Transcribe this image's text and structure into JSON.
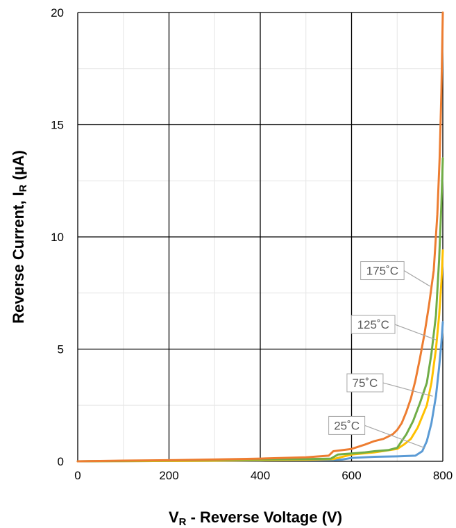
{
  "chart_data": {
    "type": "line",
    "title": "",
    "xlabel": {
      "main": "V",
      "sub": "R",
      "rest": " - Reverse Voltage (V)"
    },
    "ylabel": {
      "main": "Reverse Current, I",
      "sub": "R",
      "rest": " (µA)"
    },
    "xlim": [
      0,
      800
    ],
    "ylim": [
      0,
      20
    ],
    "x_ticks": [
      0,
      200,
      400,
      600,
      800
    ],
    "y_ticks": [
      0,
      5,
      10,
      15,
      20
    ],
    "x_minor_step": 100,
    "y_minor_step": 2.5,
    "grid": true,
    "legend": "none",
    "series": [
      {
        "name": "25˚C",
        "color": "#5B9BD5",
        "points": [
          [
            0,
            0
          ],
          [
            100,
            0.01
          ],
          [
            200,
            0.02
          ],
          [
            300,
            0.03
          ],
          [
            400,
            0.04
          ],
          [
            500,
            0.05
          ],
          [
            560,
            0.06
          ],
          [
            580,
            0.08
          ],
          [
            600,
            0.15
          ],
          [
            650,
            0.2
          ],
          [
            700,
            0.22
          ],
          [
            740,
            0.25
          ],
          [
            755,
            0.45
          ],
          [
            765,
            0.9
          ],
          [
            775,
            1.7
          ],
          [
            785,
            2.9
          ],
          [
            792,
            4.2
          ],
          [
            797,
            5.3
          ],
          [
            800,
            6.2
          ]
        ]
      },
      {
        "name": "75˚C",
        "color": "#FFC000",
        "points": [
          [
            0,
            0
          ],
          [
            100,
            0.01
          ],
          [
            200,
            0.02
          ],
          [
            300,
            0.03
          ],
          [
            400,
            0.05
          ],
          [
            500,
            0.07
          ],
          [
            560,
            0.1
          ],
          [
            580,
            0.2
          ],
          [
            600,
            0.3
          ],
          [
            650,
            0.4
          ],
          [
            700,
            0.55
          ],
          [
            715,
            0.75
          ],
          [
            730,
            1.0
          ],
          [
            745,
            1.5
          ],
          [
            755,
            2.0
          ],
          [
            765,
            2.5
          ],
          [
            775,
            3.5
          ],
          [
            785,
            5.0
          ],
          [
            792,
            6.5
          ],
          [
            797,
            8.0
          ],
          [
            800,
            9.4
          ]
        ]
      },
      {
        "name": "125˚C",
        "color": "#70AD47",
        "points": [
          [
            0,
            0
          ],
          [
            100,
            0.02
          ],
          [
            200,
            0.04
          ],
          [
            300,
            0.06
          ],
          [
            400,
            0.08
          ],
          [
            500,
            0.1
          ],
          [
            555,
            0.12
          ],
          [
            570,
            0.3
          ],
          [
            600,
            0.35
          ],
          [
            630,
            0.4
          ],
          [
            650,
            0.45
          ],
          [
            680,
            0.5
          ],
          [
            700,
            0.6
          ],
          [
            710,
            0.9
          ],
          [
            720,
            1.2
          ],
          [
            735,
            1.8
          ],
          [
            750,
            2.6
          ],
          [
            765,
            3.5
          ],
          [
            775,
            4.8
          ],
          [
            785,
            6.5
          ],
          [
            792,
            9.0
          ],
          [
            797,
            11.5
          ],
          [
            800,
            13.5
          ]
        ]
      },
      {
        "name": "175˚C",
        "color": "#ED7D31",
        "points": [
          [
            0,
            0
          ],
          [
            100,
            0.03
          ],
          [
            200,
            0.05
          ],
          [
            300,
            0.08
          ],
          [
            400,
            0.12
          ],
          [
            500,
            0.18
          ],
          [
            550,
            0.25
          ],
          [
            560,
            0.45
          ],
          [
            600,
            0.55
          ],
          [
            630,
            0.75
          ],
          [
            650,
            0.9
          ],
          [
            670,
            1.0
          ],
          [
            690,
            1.2
          ],
          [
            700,
            1.4
          ],
          [
            710,
            1.7
          ],
          [
            720,
            2.2
          ],
          [
            730,
            2.8
          ],
          [
            740,
            3.6
          ],
          [
            750,
            4.6
          ],
          [
            760,
            5.7
          ],
          [
            770,
            7.0
          ],
          [
            780,
            8.5
          ],
          [
            788,
            11.0
          ],
          [
            793,
            13.5
          ],
          [
            797,
            16.5
          ],
          [
            800,
            20.0
          ]
        ]
      }
    ],
    "annotations": [
      {
        "text": "175˚C",
        "series": 3,
        "target": [
          772,
          7.8
        ],
        "label_at": [
          620,
          8.9
        ]
      },
      {
        "text": "125˚C",
        "series": 2,
        "target": [
          787,
          5.4
        ],
        "label_at": [
          600,
          6.5
        ]
      },
      {
        "text": "75˚C",
        "series": 1,
        "target": [
          778,
          2.9
        ],
        "label_at": [
          590,
          3.9
        ]
      },
      {
        "text": "25˚C",
        "series": 0,
        "target": [
          760,
          0.6
        ],
        "label_at": [
          550,
          2.0
        ]
      }
    ]
  }
}
